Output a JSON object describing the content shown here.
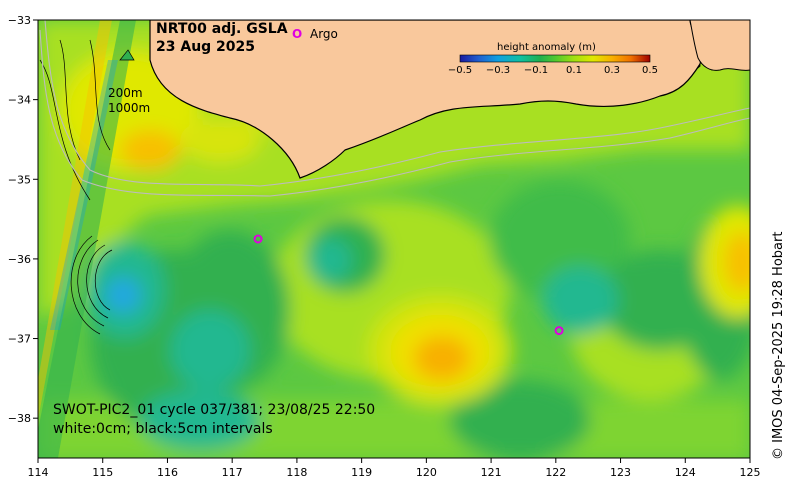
{
  "header": {
    "title": "NRT00 adj. GSLA",
    "date": "23 Aug 2025"
  },
  "legend": {
    "argo_marker": "O",
    "argo_label": "Argo",
    "argo_color": "#e000e0"
  },
  "colorbar": {
    "title": "height anomaly (m)",
    "ticks": [
      "−0.5",
      "−0.3",
      "−0.1",
      "0.1",
      "0.3",
      "0.5"
    ],
    "colors": [
      "#1a1aa0",
      "#2060d0",
      "#10a0e0",
      "#10c0a0",
      "#20b050",
      "#50c830",
      "#a0e010",
      "#e0e800",
      "#f8b000",
      "#f07000",
      "#e03000",
      "#a00000"
    ]
  },
  "isobaths": {
    "label_200": "200m",
    "label_1000": "1000m"
  },
  "axes": {
    "x_ticks": [
      "114",
      "115",
      "116",
      "117",
      "118",
      "119",
      "120",
      "121",
      "122",
      "123",
      "124",
      "125"
    ],
    "y_ticks": [
      "−33",
      "−34",
      "−35",
      "−36",
      "−37",
      "−38"
    ]
  },
  "swot": {
    "line1": "SWOT-PIC2_01 cycle 037/381; 23/08/25 22:50",
    "line2": "white:0cm; black:5cm intervals"
  },
  "credit": "© IMOS 04-Sep-2025 19:28 Hobart",
  "map_data": {
    "lon_range": [
      114,
      125
    ],
    "lat_range": [
      -38.5,
      -33
    ],
    "argo_floats": [
      {
        "lon": 117.4,
        "lat": -35.75
      },
      {
        "lon": 122.05,
        "lat": -36.9
      }
    ],
    "land_color": "#f9c89c"
  }
}
